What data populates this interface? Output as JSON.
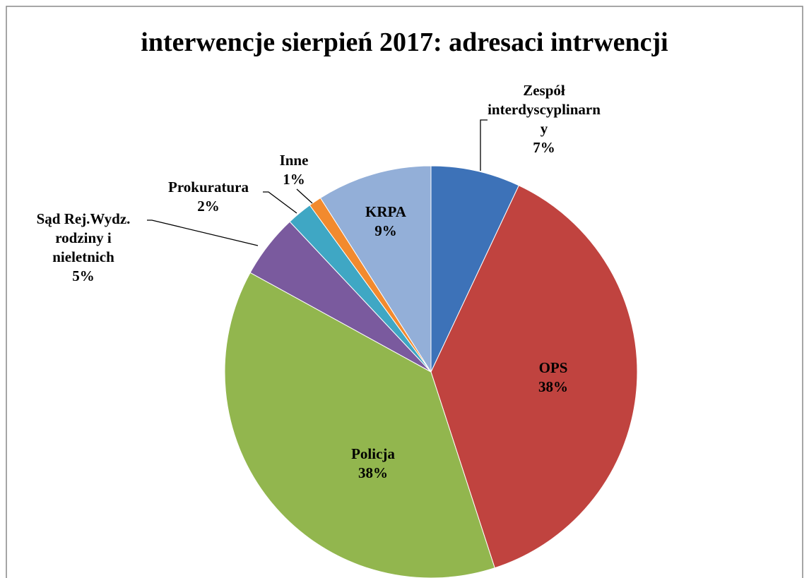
{
  "chart_data": {
    "type": "pie",
    "title": "interwencje sierpień 2017: adresaci intrwencji",
    "categories": [
      "Zespół interdyscyplinarny",
      "OPS",
      "Policja",
      "Sąd Rej.Wydz. rodziny i nieletnich",
      "Prokuratura",
      "Inne",
      "KRPA"
    ],
    "values": [
      7,
      38,
      38,
      5,
      2,
      1,
      9
    ],
    "value_labels": [
      "7%",
      "38%",
      "38%",
      "5%",
      "2%",
      "1%",
      "9%"
    ],
    "colors": [
      "#3d72b8",
      "#c0433f",
      "#92b64e",
      "#7a5a9e",
      "#3fa7c4",
      "#f28a2e",
      "#93afd8"
    ]
  }
}
